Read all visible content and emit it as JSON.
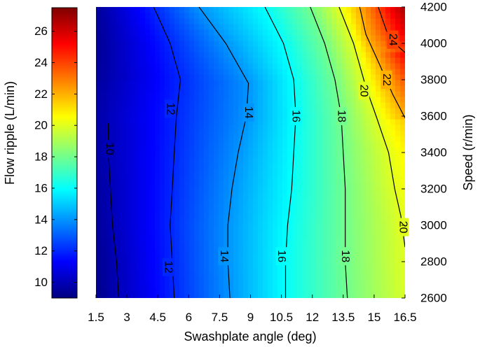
{
  "chart_data": {
    "type": "heatmap",
    "subtype": "filled contour map with labeled isolines",
    "title": "",
    "xlabel": "Swashplate angle (deg)",
    "ylabel": "Speed (r/min)",
    "colorbar_label": "Flow ripple (L/min)",
    "colormap": "jet",
    "grid": false,
    "colorbar_position": "left",
    "y_axis_side": "right",
    "xlim": [
      1.5,
      16.5
    ],
    "ylim": [
      2600,
      4200
    ],
    "clim": [
      9,
      27.5
    ],
    "x_ticks": [
      "1.5",
      "3",
      "4.5",
      "6",
      "7.5",
      "9",
      "10.5",
      "12",
      "13.5",
      "15",
      "16.5"
    ],
    "y_ticks": [
      "2600",
      "2800",
      "3000",
      "3200",
      "3400",
      "3600",
      "3800",
      "4000",
      "4200"
    ],
    "colorbar_ticks": [
      "10",
      "12",
      "14",
      "16",
      "18",
      "20",
      "22",
      "24",
      "26"
    ],
    "contours": [
      {
        "level": 10,
        "label": "10",
        "points": [
          [
            2.6,
            2600
          ],
          [
            2.5,
            2800
          ],
          [
            2.3,
            3000
          ],
          [
            2.2,
            3200
          ],
          [
            2.1,
            3400
          ],
          [
            2.1,
            3560
          ]
        ],
        "label_points": [
          [
            2.15,
            3420
          ]
        ]
      },
      {
        "level": 12,
        "label": "12",
        "points": [
          [
            5.3,
            2600
          ],
          [
            5.2,
            2800
          ],
          [
            5.1,
            3000
          ],
          [
            5.2,
            3200
          ],
          [
            5.3,
            3400
          ],
          [
            5.4,
            3600
          ],
          [
            5.6,
            3800
          ],
          [
            5.1,
            4000
          ],
          [
            4.3,
            4200
          ]
        ],
        "label_points": [
          [
            5.0,
            2770
          ],
          [
            5.1,
            3640
          ]
        ]
      },
      {
        "level": 14,
        "label": "14",
        "points": [
          [
            8.0,
            2600
          ],
          [
            7.9,
            2800
          ],
          [
            7.9,
            3000
          ],
          [
            8.1,
            3200
          ],
          [
            8.4,
            3400
          ],
          [
            8.8,
            3600
          ],
          [
            8.9,
            3780
          ],
          [
            7.8,
            4000
          ],
          [
            6.5,
            4200
          ]
        ],
        "label_points": [
          [
            7.7,
            2830
          ],
          [
            8.9,
            3620
          ]
        ]
      },
      {
        "level": 16,
        "label": "16",
        "points": [
          [
            10.7,
            2600
          ],
          [
            10.7,
            2800
          ],
          [
            10.8,
            3000
          ],
          [
            11.0,
            3200
          ],
          [
            11.1,
            3400
          ],
          [
            11.2,
            3600
          ],
          [
            11.1,
            3800
          ],
          [
            10.6,
            4000
          ],
          [
            9.7,
            4200
          ]
        ],
        "label_points": [
          [
            10.5,
            2830
          ],
          [
            11.2,
            3600
          ]
        ]
      },
      {
        "level": 18,
        "label": "18",
        "points": [
          [
            13.7,
            2600
          ],
          [
            13.6,
            2800
          ],
          [
            13.6,
            3000
          ],
          [
            13.6,
            3200
          ],
          [
            13.5,
            3400
          ],
          [
            13.4,
            3600
          ],
          [
            13.1,
            3800
          ],
          [
            12.6,
            4000
          ],
          [
            11.9,
            4200
          ]
        ],
        "label_points": [
          [
            13.6,
            2830
          ],
          [
            13.4,
            3600
          ]
        ]
      },
      {
        "level": 20,
        "label": "20",
        "points": [
          [
            16.5,
            2880
          ],
          [
            16.3,
            3050
          ],
          [
            16.0,
            3200
          ],
          [
            15.7,
            3400
          ],
          [
            15.1,
            3600
          ],
          [
            14.6,
            3760
          ],
          [
            14.0,
            4000
          ],
          [
            13.3,
            4200
          ]
        ],
        "label_points": [
          [
            16.4,
            2990
          ],
          [
            14.5,
            3740
          ]
        ]
      },
      {
        "level": 22,
        "label": "22",
        "points": [
          [
            16.5,
            3590
          ],
          [
            15.9,
            3720
          ],
          [
            15.2,
            3900
          ],
          [
            14.6,
            4050
          ],
          [
            14.3,
            4200
          ]
        ],
        "label_points": [
          [
            15.6,
            3800
          ]
        ]
      },
      {
        "level": 24,
        "label": "24",
        "points": [
          [
            16.5,
            3950
          ],
          [
            16.1,
            3990
          ],
          [
            15.6,
            4070
          ],
          [
            15.2,
            4200
          ]
        ],
        "label_points": [
          [
            15.9,
            4020
          ]
        ]
      }
    ]
  }
}
